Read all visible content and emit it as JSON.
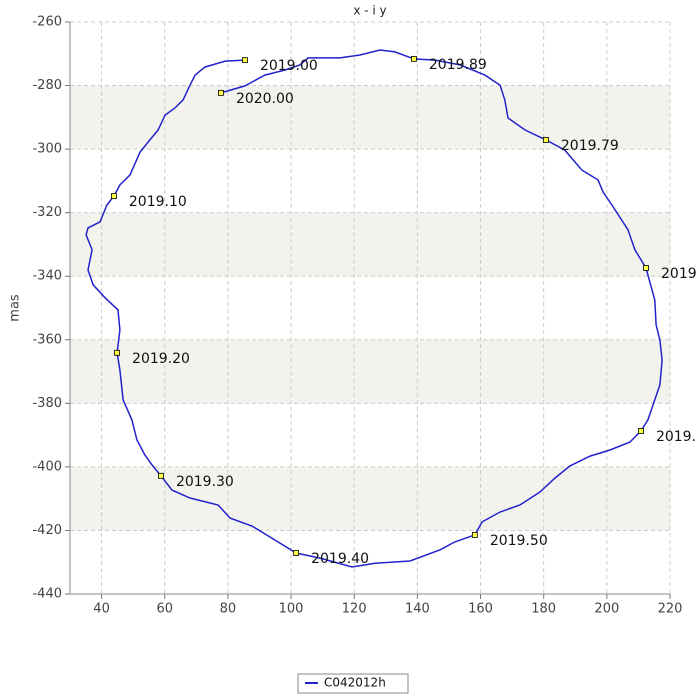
{
  "chart_data": {
    "type": "line",
    "title": "x - i y",
    "y_label": "mas",
    "xlim": [
      30,
      220
    ],
    "xticks": [
      40,
      60,
      80,
      100,
      120,
      140,
      160,
      180,
      200,
      220
    ],
    "ylim": [
      -440,
      -260
    ],
    "yticks": [
      -260,
      -280,
      -300,
      -320,
      -340,
      -360,
      -380,
      -400,
      -420,
      -440
    ],
    "grid": true,
    "series": [
      {
        "name": "C042012h",
        "color": "#2222cc",
        "x": [
          85.4,
          79.1,
          72.7,
          69.6,
          68.0,
          65.8,
          63.2,
          60.1,
          57.9,
          55.3,
          52.2,
          49.0,
          45.8,
          43.9,
          41.7,
          39.5,
          35.7,
          35.1,
          37.0,
          35.7,
          37.3,
          41.1,
          45.2,
          45.8,
          44.9,
          45.8,
          46.8,
          49.6,
          51.2,
          53.7,
          56.0,
          58.8,
          62.3,
          68.0,
          76.9,
          80.7,
          87.6,
          94.9,
          101.6,
          109.2,
          119.3,
          126.6,
          137.7,
          147.2,
          151.9,
          158.2,
          160.5,
          166.2,
          172.5,
          178.8,
          183.6,
          188.3,
          194.7,
          201.0,
          207.3,
          210.8,
          213.0,
          215.2,
          216.8,
          217.5,
          216.8,
          215.6,
          215.2,
          212.4,
          208.9,
          206.7,
          201.6,
          198.8,
          197.2,
          192.1,
          186.7,
          180.7,
          174.1,
          168.7,
          167.7,
          166.2,
          161.4,
          153.5,
          145.6,
          138.9,
          132.9,
          128.2,
          121.8,
          115.5,
          105.4,
          102.8,
          98.1,
          91.7,
          85.4,
          77.8
        ],
        "values": [
          -272.0,
          -272.3,
          -274.2,
          -276.7,
          -279.9,
          -284.5,
          -287.1,
          -289.3,
          -294.0,
          -297.1,
          -300.9,
          -308.1,
          -311.3,
          -314.8,
          -317.6,
          -322.9,
          -324.8,
          -327.0,
          -331.7,
          -338.0,
          -342.7,
          -346.8,
          -350.6,
          -356.9,
          -364.1,
          -369.5,
          -378.9,
          -385.2,
          -391.5,
          -396.2,
          -399.4,
          -402.8,
          -407.3,
          -409.8,
          -412.0,
          -416.1,
          -418.6,
          -423.0,
          -427.1,
          -428.7,
          -431.5,
          -430.3,
          -429.6,
          -426.1,
          -423.6,
          -421.4,
          -417.3,
          -414.2,
          -412.0,
          -407.9,
          -403.5,
          -399.7,
          -396.6,
          -394.7,
          -392.2,
          -388.7,
          -385.2,
          -378.9,
          -374.2,
          -366.4,
          -360.1,
          -355.3,
          -347.5,
          -337.4,
          -331.7,
          -325.4,
          -317.6,
          -313.5,
          -309.7,
          -306.6,
          -300.3,
          -297.1,
          -294.0,
          -290.2,
          -284.5,
          -279.9,
          -276.7,
          -273.5,
          -272.0,
          -271.6,
          -269.4,
          -268.8,
          -270.4,
          -271.3,
          -271.3,
          -273.5,
          -275.1,
          -276.7,
          -280.1,
          -282.3
        ]
      }
    ],
    "annotations": [
      {
        "label": "2019.00",
        "x": 85.4,
        "y": -272.0
      },
      {
        "label": "2019.10",
        "x": 43.9,
        "y": -314.8
      },
      {
        "label": "2019.20",
        "x": 44.9,
        "y": -364.1
      },
      {
        "label": "2019.30",
        "x": 58.8,
        "y": -402.8
      },
      {
        "label": "2019.40",
        "x": 101.6,
        "y": -427.1
      },
      {
        "label": "2019.50",
        "x": 158.2,
        "y": -421.4
      },
      {
        "label": "2019.",
        "x": 210.8,
        "y": -388.7
      },
      {
        "label": "2019",
        "x": 212.4,
        "y": -337.4
      },
      {
        "label": "2019.79",
        "x": 180.7,
        "y": -297.1
      },
      {
        "label": "2019.89",
        "x": 138.9,
        "y": -271.6
      },
      {
        "label": "2020.00",
        "x": 77.8,
        "y": -282.3
      }
    ]
  }
}
